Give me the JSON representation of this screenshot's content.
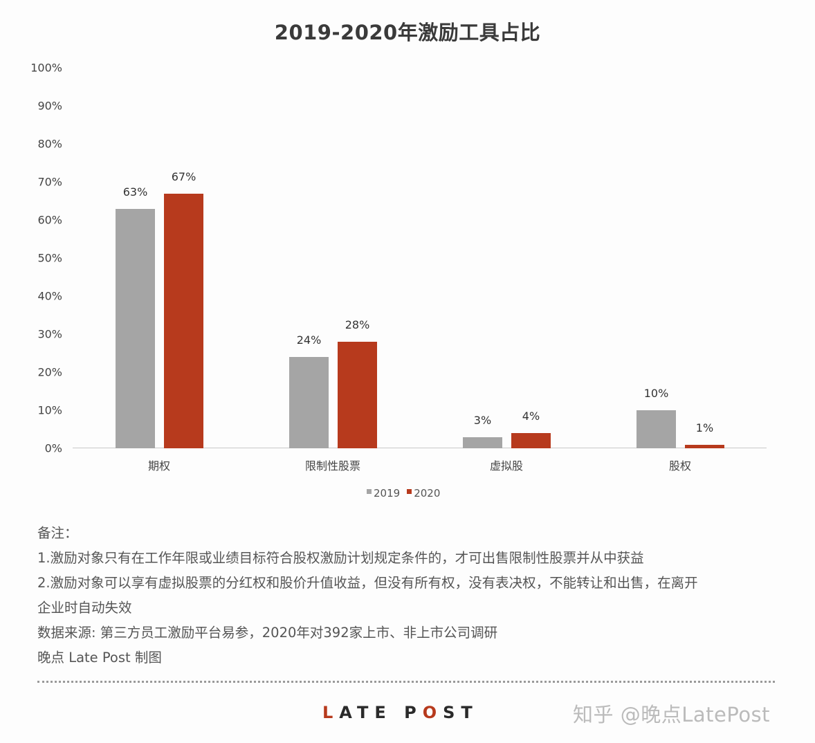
{
  "chart_data": {
    "type": "bar",
    "title": "2019-2020年激励工具占比",
    "categories": [
      "期权",
      "限制性股票",
      "虚拟股",
      "股权"
    ],
    "series": [
      {
        "name": "2019",
        "values": [
          63,
          24,
          3,
          10
        ],
        "color": "#a5a5a5"
      },
      {
        "name": "2020",
        "values": [
          67,
          28,
          4,
          1
        ],
        "color": "#b73a1d"
      }
    ],
    "value_labels": {
      "2019": [
        "63%",
        "24%",
        "3%",
        "10%"
      ],
      "2020": [
        "67%",
        "28%",
        "4%",
        "1%"
      ]
    },
    "xlabel": "",
    "ylabel": "",
    "ylim": [
      0,
      100
    ],
    "yticks": [
      "0%",
      "10%",
      "20%",
      "30%",
      "40%",
      "50%",
      "60%",
      "70%",
      "80%",
      "90%",
      "100%"
    ],
    "grid": false,
    "legend_position": "bottom"
  },
  "legend": {
    "items": [
      {
        "label": "2019",
        "color": "#a5a5a5"
      },
      {
        "label": "2020",
        "color": "#b73a1d"
      }
    ]
  },
  "notes": {
    "heading": "备注：",
    "line1": "1.激励对象只有在工作年限或业绩目标符合股权激励计划规定条件的，才可出售限制性股票并从中获益",
    "line2a": "2.激励对象可以享有虚拟股票的分红权和股价升值收益，但没有所有权，没有表决权，不能转让和出售，在离开",
    "line2b": "企业时自动失效",
    "source": "数据来源: 第三方员工激励平台易参，2020年对392家上市、非上市公司调研",
    "credit": "晚点 Late Post 制图"
  },
  "footer": {
    "logo_l": "L",
    "logo_rest1": "ATE P",
    "logo_o": "O",
    "logo_rest2": "ST",
    "watermark": "知乎 @晚点LatePost"
  }
}
